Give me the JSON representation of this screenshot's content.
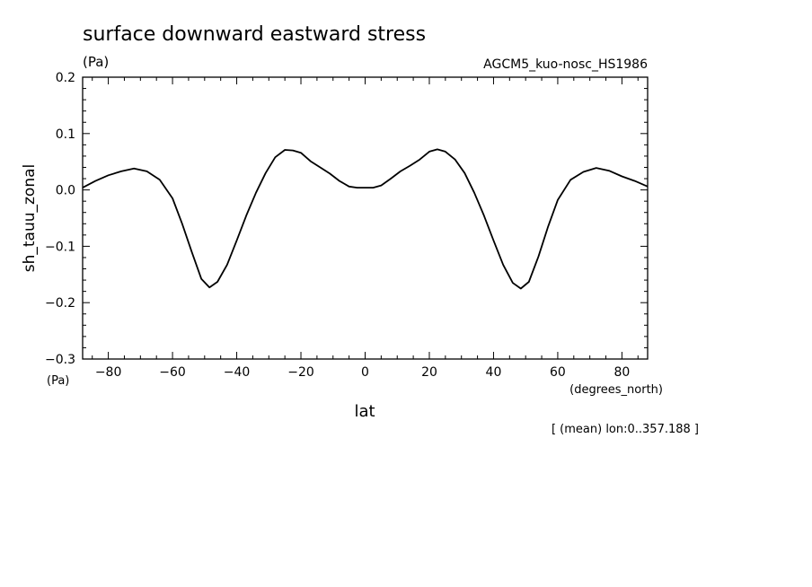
{
  "chart_data": {
    "type": "line",
    "title": "surface downward eastward stress",
    "title_unit": "(Pa)",
    "subtitle_right": "AGCM5_kuo-nosc_HS1986",
    "xlabel": "lat",
    "xunit": "(degrees_north)",
    "ylabel": "sh_tauu_zonal",
    "yunit": "(Pa)",
    "footnote": "[ (mean) lon:0..357.188 ]",
    "xlim": [
      -88,
      88
    ],
    "ylim": [
      -0.3,
      0.2
    ],
    "xticks": [
      -80,
      -60,
      -40,
      -20,
      0,
      20,
      40,
      60,
      80
    ],
    "xtick_labels": [
      "−80",
      "−60",
      "−40",
      "−20",
      "0",
      "20",
      "40",
      "60",
      "80"
    ],
    "yticks": [
      0.2,
      0.1,
      0.0,
      -0.1,
      -0.2,
      -0.3
    ],
    "ytick_labels": [
      "0.2",
      "0.1",
      "0.0",
      "−0.1",
      "−0.2",
      "−0.3"
    ],
    "grid": false,
    "series": [
      {
        "color": "#000000",
        "x": [
          -88,
          -84,
          -80,
          -76,
          -72,
          -68,
          -64,
          -60,
          -57,
          -54,
          -51,
          -48.5,
          -46,
          -43,
          -40,
          -37,
          -34,
          -31,
          -28,
          -25,
          -22.5,
          -20,
          -17,
          -14,
          -11,
          -8,
          -5,
          -2.5,
          0,
          2.5,
          5,
          8,
          11,
          14,
          17,
          20,
          22.5,
          25,
          28,
          31,
          34,
          37,
          40,
          43,
          46,
          48.5,
          51,
          54,
          57,
          60,
          64,
          68,
          72,
          76,
          80,
          84,
          88
        ],
        "y": [
          0.004,
          0.016,
          0.026,
          0.033,
          0.038,
          0.033,
          0.018,
          -0.015,
          -0.06,
          -0.11,
          -0.158,
          -0.173,
          -0.163,
          -0.133,
          -0.09,
          -0.045,
          -0.005,
          0.03,
          0.058,
          0.071,
          0.07,
          0.066,
          0.051,
          0.04,
          0.029,
          0.016,
          0.006,
          0.004,
          0.004,
          0.004,
          0.008,
          0.02,
          0.033,
          0.043,
          0.054,
          0.068,
          0.072,
          0.068,
          0.054,
          0.03,
          -0.005,
          -0.045,
          -0.09,
          -0.133,
          -0.165,
          -0.175,
          -0.163,
          -0.118,
          -0.065,
          -0.018,
          0.018,
          0.032,
          0.039,
          0.034,
          0.024,
          0.016,
          0.006
        ]
      }
    ]
  }
}
